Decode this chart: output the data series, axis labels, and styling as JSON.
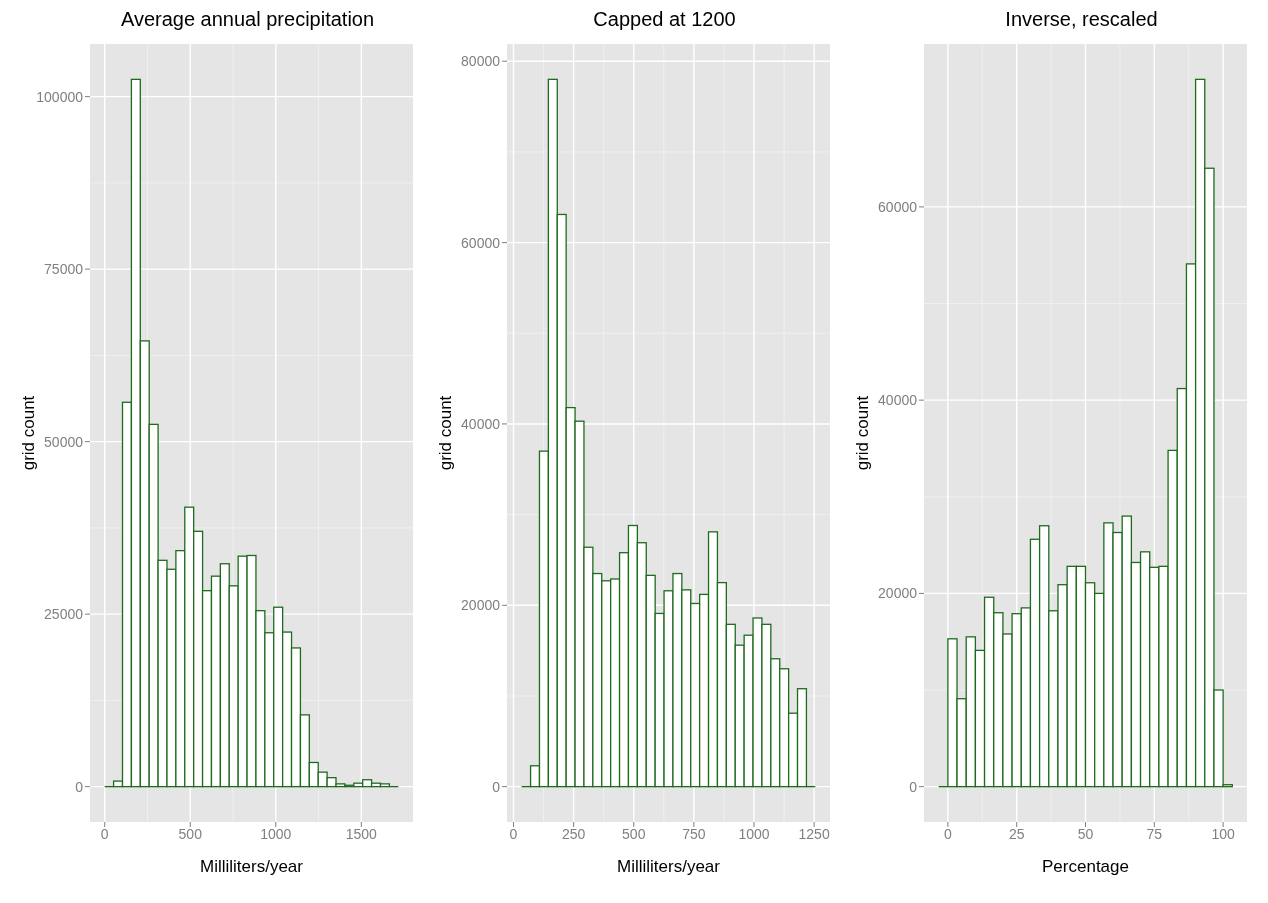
{
  "chart_data": [
    {
      "type": "histogram",
      "title": "Average annual precipitation",
      "xlabel": "Milliliters/year",
      "ylabel": "grid count",
      "color": "#1e6b1e",
      "bins": [
        0,
        52,
        104,
        156,
        208,
        260,
        312,
        364,
        416,
        468,
        520,
        572,
        624,
        676,
        728,
        780,
        832,
        884,
        936,
        988,
        1040,
        1092,
        1144,
        1196,
        1248,
        1300,
        1352,
        1404,
        1456,
        1508,
        1560,
        1612,
        1664,
        1716
      ],
      "values": [
        0,
        800,
        55700,
        102500,
        64600,
        52500,
        32800,
        31500,
        34200,
        40500,
        37000,
        28400,
        30500,
        32300,
        29100,
        33400,
        33500,
        25500,
        22300,
        26000,
        22400,
        20100,
        10400,
        3500,
        2100,
        1300,
        400,
        200,
        500,
        1000,
        500,
        400,
        0
      ],
      "xlim": [
        -86,
        1802
      ],
      "xticks": [
        0,
        500,
        1000,
        1500
      ],
      "ylim": [
        -5125,
        107625
      ],
      "yticks": [
        0,
        25000,
        50000,
        75000,
        100000
      ],
      "grid": true
    },
    {
      "type": "histogram",
      "title": "Capped at 1200",
      "xlabel": "Milliliters/year",
      "ylabel": "grid count",
      "color": "#1e6b1e",
      "bins": [
        34,
        71,
        108,
        145,
        182,
        219,
        256,
        293,
        330,
        367,
        404,
        441,
        478,
        515,
        552,
        589,
        626,
        663,
        700,
        737,
        774,
        811,
        848,
        885,
        922,
        959,
        996,
        1033,
        1070,
        1107,
        1144,
        1181,
        1218,
        1255
      ],
      "values": [
        0,
        2300,
        37000,
        78000,
        63100,
        41800,
        40300,
        26400,
        23500,
        22700,
        22900,
        25800,
        28800,
        26900,
        23300,
        19100,
        21600,
        23500,
        21700,
        20200,
        21200,
        28100,
        22500,
        17900,
        15600,
        16700,
        18600,
        17900,
        14100,
        13000,
        8100,
        10800,
        0
      ],
      "xlim": [
        -27,
        1316
      ],
      "xticks": [
        0,
        250,
        500,
        750,
        1000,
        1250
      ],
      "ylim": [
        -3900,
        81900
      ],
      "yticks": [
        0,
        20000,
        40000,
        60000,
        80000
      ],
      "grid": true
    },
    {
      "type": "histogram",
      "title": "Inverse, rescaled",
      "xlabel": "Percentage",
      "ylabel": "grid count",
      "color": "#1e6b1e",
      "bins": [
        -3.33,
        0,
        3.33,
        6.67,
        10,
        13.33,
        16.67,
        20,
        23.33,
        26.67,
        30,
        33.33,
        36.67,
        40,
        43.33,
        46.67,
        50,
        53.33,
        56.67,
        60,
        63.33,
        66.67,
        70,
        73.33,
        76.67,
        80,
        83.33,
        86.67,
        90,
        93.33,
        96.67,
        100,
        103.33
      ],
      "values": [
        0,
        15300,
        9100,
        15500,
        14100,
        19600,
        18000,
        15800,
        17900,
        18500,
        25600,
        27000,
        18200,
        20900,
        22800,
        22800,
        21100,
        20000,
        27300,
        26300,
        28000,
        23200,
        24300,
        22700,
        22800,
        34800,
        41200,
        54100,
        73200,
        64000,
        10000,
        200
      ],
      "xlim": [
        -8.67,
        108.67
      ],
      "xticks": [
        0,
        25,
        50,
        75,
        100
      ],
      "ylim": [
        -3660,
        76860
      ],
      "yticks": [
        0,
        20000,
        40000,
        60000
      ],
      "grid": true
    }
  ]
}
